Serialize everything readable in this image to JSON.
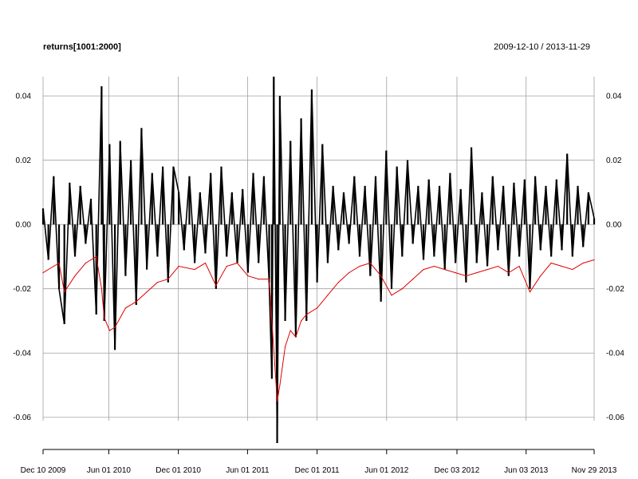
{
  "chart_data": {
    "type": "line",
    "title": "returns[1001:2000]",
    "date_range": "2009-12-10 / 2013-11-29",
    "xlabel": "",
    "ylabel": "",
    "x_range": [
      "2009-12-10",
      "2013-11-29"
    ],
    "ylim": [
      -0.07,
      0.046
    ],
    "grid": true,
    "y_ticks": [
      {
        "value": 0.04,
        "label": "0.04"
      },
      {
        "value": 0.02,
        "label": "0.02"
      },
      {
        "value": 0.0,
        "label": "0.00"
      },
      {
        "value": -0.02,
        "label": "-0.02"
      },
      {
        "value": -0.04,
        "label": "-0.04"
      },
      {
        "value": -0.06,
        "label": "-0.06"
      }
    ],
    "x_ticks": [
      {
        "date": "2009-12-10",
        "label": "Dec 10 2009"
      },
      {
        "date": "2010-06-01",
        "label": "Jun 01 2010"
      },
      {
        "date": "2010-12-01",
        "label": "Dec 01 2010"
      },
      {
        "date": "2011-06-01",
        "label": "Jun 01 2011"
      },
      {
        "date": "2011-12-01",
        "label": "Dec 01 2011"
      },
      {
        "date": "2012-06-01",
        "label": "Jun 01 2012"
      },
      {
        "date": "2012-12-03",
        "label": "Dec 03 2012"
      },
      {
        "date": "2013-06-03",
        "label": "Jun 03 2013"
      },
      {
        "date": "2013-11-29",
        "label": "Nov 29 2013"
      }
    ],
    "series": [
      {
        "color": "#000000",
        "style": "bars",
        "points": [
          [
            "2009-12-10",
            0.005
          ],
          [
            "2009-12-24",
            -0.011
          ],
          [
            "2010-01-07",
            0.015
          ],
          [
            "2010-01-21",
            -0.02
          ],
          [
            "2010-02-04",
            -0.031
          ],
          [
            "2010-02-18",
            0.013
          ],
          [
            "2010-03-04",
            -0.01
          ],
          [
            "2010-03-18",
            0.012
          ],
          [
            "2010-04-01",
            -0.006
          ],
          [
            "2010-04-15",
            0.008
          ],
          [
            "2010-04-29",
            -0.028
          ],
          [
            "2010-05-13",
            0.043
          ],
          [
            "2010-05-20",
            -0.03
          ],
          [
            "2010-06-03",
            0.025
          ],
          [
            "2010-06-17",
            -0.039
          ],
          [
            "2010-07-01",
            0.026
          ],
          [
            "2010-07-15",
            -0.016
          ],
          [
            "2010-07-29",
            0.02
          ],
          [
            "2010-08-12",
            -0.025
          ],
          [
            "2010-08-26",
            0.03
          ],
          [
            "2010-09-09",
            -0.014
          ],
          [
            "2010-09-23",
            0.016
          ],
          [
            "2010-10-07",
            -0.01
          ],
          [
            "2010-10-21",
            0.018
          ],
          [
            "2010-11-04",
            -0.018
          ],
          [
            "2010-11-18",
            0.018
          ],
          [
            "2010-12-02",
            0.01
          ],
          [
            "2010-12-16",
            -0.008
          ],
          [
            "2010-12-30",
            0.015
          ],
          [
            "2011-01-13",
            -0.012
          ],
          [
            "2011-01-27",
            0.01
          ],
          [
            "2011-02-10",
            -0.009
          ],
          [
            "2011-02-24",
            0.016
          ],
          [
            "2011-03-10",
            -0.02
          ],
          [
            "2011-03-24",
            0.018
          ],
          [
            "2011-04-07",
            -0.01
          ],
          [
            "2011-04-21",
            0.01
          ],
          [
            "2011-05-05",
            -0.012
          ],
          [
            "2011-05-19",
            0.011
          ],
          [
            "2011-06-02",
            -0.015
          ],
          [
            "2011-06-16",
            0.016
          ],
          [
            "2011-06-30",
            -0.012
          ],
          [
            "2011-07-14",
            0.015
          ],
          [
            "2011-07-28",
            -0.018
          ],
          [
            "2011-08-04",
            -0.048
          ],
          [
            "2011-08-09",
            0.046
          ],
          [
            "2011-08-18",
            -0.068
          ],
          [
            "2011-08-25",
            0.04
          ],
          [
            "2011-09-08",
            -0.03
          ],
          [
            "2011-09-22",
            0.026
          ],
          [
            "2011-10-06",
            -0.035
          ],
          [
            "2011-10-20",
            0.033
          ],
          [
            "2011-11-03",
            -0.03
          ],
          [
            "2011-11-17",
            0.042
          ],
          [
            "2011-12-01",
            -0.018
          ],
          [
            "2011-12-15",
            0.025
          ],
          [
            "2011-12-29",
            -0.012
          ],
          [
            "2012-01-12",
            0.012
          ],
          [
            "2012-01-26",
            -0.008
          ],
          [
            "2012-02-09",
            0.01
          ],
          [
            "2012-02-23",
            -0.006
          ],
          [
            "2012-03-08",
            0.015
          ],
          [
            "2012-03-22",
            -0.01
          ],
          [
            "2012-04-05",
            0.012
          ],
          [
            "2012-04-19",
            -0.016
          ],
          [
            "2012-05-03",
            0.015
          ],
          [
            "2012-05-17",
            -0.024
          ],
          [
            "2012-05-31",
            0.023
          ],
          [
            "2012-06-14",
            -0.02
          ],
          [
            "2012-06-28",
            0.018
          ],
          [
            "2012-07-12",
            -0.01
          ],
          [
            "2012-07-26",
            0.02
          ],
          [
            "2012-08-09",
            -0.006
          ],
          [
            "2012-08-23",
            0.012
          ],
          [
            "2012-09-06",
            -0.011
          ],
          [
            "2012-09-20",
            0.014
          ],
          [
            "2012-10-04",
            -0.01
          ],
          [
            "2012-10-18",
            0.012
          ],
          [
            "2012-11-01",
            -0.014
          ],
          [
            "2012-11-15",
            0.016
          ],
          [
            "2012-11-29",
            -0.012
          ],
          [
            "2012-12-13",
            0.011
          ],
          [
            "2012-12-27",
            -0.018
          ],
          [
            "2013-01-10",
            0.024
          ],
          [
            "2013-01-24",
            -0.012
          ],
          [
            "2013-02-07",
            0.01
          ],
          [
            "2013-02-21",
            -0.013
          ],
          [
            "2013-03-07",
            0.015
          ],
          [
            "2013-03-21",
            -0.008
          ],
          [
            "2013-04-04",
            0.012
          ],
          [
            "2013-04-18",
            -0.016
          ],
          [
            "2013-05-02",
            0.013
          ],
          [
            "2013-05-16",
            -0.01
          ],
          [
            "2013-05-30",
            0.014
          ],
          [
            "2013-06-13",
            -0.02
          ],
          [
            "2013-06-27",
            0.015
          ],
          [
            "2013-07-11",
            -0.008
          ],
          [
            "2013-07-25",
            0.012
          ],
          [
            "2013-08-08",
            -0.01
          ],
          [
            "2013-08-22",
            0.014
          ],
          [
            "2013-09-05",
            -0.008
          ],
          [
            "2013-09-19",
            0.022
          ],
          [
            "2013-10-03",
            -0.01
          ],
          [
            "2013-10-17",
            0.012
          ],
          [
            "2013-10-31",
            -0.007
          ],
          [
            "2013-11-14",
            0.01
          ],
          [
            "2013-11-29",
            0.002
          ]
        ]
      },
      {
        "color": "#e00000",
        "style": "line",
        "points": [
          [
            "2009-12-10",
            -0.015
          ],
          [
            "2010-01-07",
            -0.013
          ],
          [
            "2010-01-21",
            -0.012
          ],
          [
            "2010-02-04",
            -0.021
          ],
          [
            "2010-03-04",
            -0.016
          ],
          [
            "2010-04-01",
            -0.012
          ],
          [
            "2010-04-29",
            -0.01
          ],
          [
            "2010-05-13",
            -0.02
          ],
          [
            "2010-05-20",
            -0.029
          ],
          [
            "2010-06-03",
            -0.033
          ],
          [
            "2010-06-17",
            -0.032
          ],
          [
            "2010-07-15",
            -0.026
          ],
          [
            "2010-08-12",
            -0.024
          ],
          [
            "2010-09-09",
            -0.021
          ],
          [
            "2010-10-07",
            -0.018
          ],
          [
            "2010-11-04",
            -0.017
          ],
          [
            "2010-12-02",
            -0.013
          ],
          [
            "2011-01-13",
            -0.014
          ],
          [
            "2011-02-10",
            -0.012
          ],
          [
            "2011-03-10",
            -0.019
          ],
          [
            "2011-04-07",
            -0.013
          ],
          [
            "2011-05-05",
            -0.012
          ],
          [
            "2011-06-02",
            -0.016
          ],
          [
            "2011-06-30",
            -0.017
          ],
          [
            "2011-07-28",
            -0.017
          ],
          [
            "2011-08-04",
            -0.03
          ],
          [
            "2011-08-18",
            -0.055
          ],
          [
            "2011-08-25",
            -0.05
          ],
          [
            "2011-09-08",
            -0.038
          ],
          [
            "2011-09-22",
            -0.033
          ],
          [
            "2011-10-06",
            -0.035
          ],
          [
            "2011-10-20",
            -0.03
          ],
          [
            "2011-11-03",
            -0.028
          ],
          [
            "2011-12-01",
            -0.026
          ],
          [
            "2011-12-29",
            -0.022
          ],
          [
            "2012-01-26",
            -0.018
          ],
          [
            "2012-02-23",
            -0.015
          ],
          [
            "2012-03-22",
            -0.013
          ],
          [
            "2012-04-19",
            -0.012
          ],
          [
            "2012-05-17",
            -0.016
          ],
          [
            "2012-06-14",
            -0.022
          ],
          [
            "2012-07-12",
            -0.02
          ],
          [
            "2012-08-09",
            -0.017
          ],
          [
            "2012-09-06",
            -0.014
          ],
          [
            "2012-10-04",
            -0.013
          ],
          [
            "2012-11-01",
            -0.014
          ],
          [
            "2012-11-29",
            -0.015
          ],
          [
            "2012-12-27",
            -0.016
          ],
          [
            "2013-01-24",
            -0.015
          ],
          [
            "2013-02-21",
            -0.014
          ],
          [
            "2013-03-21",
            -0.013
          ],
          [
            "2013-04-18",
            -0.015
          ],
          [
            "2013-05-16",
            -0.013
          ],
          [
            "2013-06-13",
            -0.021
          ],
          [
            "2013-07-11",
            -0.016
          ],
          [
            "2013-08-08",
            -0.012
          ],
          [
            "2013-09-05",
            -0.013
          ],
          [
            "2013-10-03",
            -0.014
          ],
          [
            "2013-10-31",
            -0.012
          ],
          [
            "2013-11-29",
            -0.011
          ]
        ]
      }
    ]
  }
}
